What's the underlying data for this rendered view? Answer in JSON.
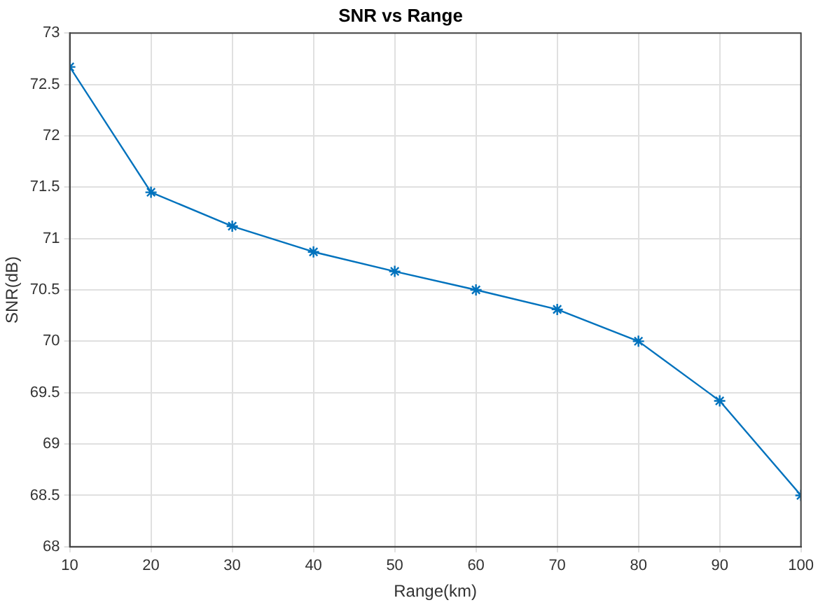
{
  "chart_data": {
    "type": "line",
    "title": "SNR vs Range",
    "xlabel": "Range(km)",
    "ylabel": "SNR(dB)",
    "x": [
      10,
      20,
      30,
      40,
      50,
      60,
      70,
      80,
      90,
      100
    ],
    "series": [
      {
        "color": "#0072bd",
        "values": [
          72.67,
          71.45,
          71.12,
          70.87,
          70.68,
          70.5,
          70.31,
          70.0,
          69.42,
          68.5
        ]
      }
    ],
    "xlim": [
      10,
      100
    ],
    "xticks": [
      10,
      20,
      30,
      40,
      50,
      60,
      70,
      80,
      90,
      100
    ],
    "ylim": [
      68,
      73
    ],
    "yticks": [
      68,
      68.5,
      69,
      69.5,
      70,
      70.5,
      71,
      71.5,
      72,
      72.5,
      73
    ],
    "grid": true,
    "legend": false,
    "marker": "cross",
    "line_style": "solid"
  }
}
